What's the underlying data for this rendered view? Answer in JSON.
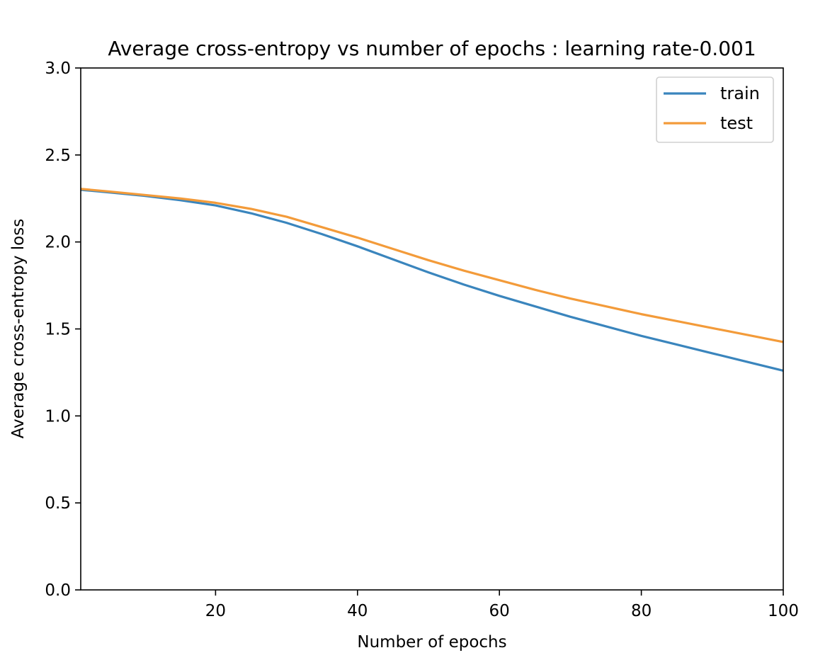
{
  "chart_data": {
    "type": "line",
    "title": "Average cross-entropy vs number of epochs : learning rate-0.001",
    "xlabel": "Number of epochs",
    "ylabel": "Average cross-entropy loss",
    "xlim": [
      1,
      100
    ],
    "ylim": [
      0,
      3.0
    ],
    "xticks": [
      20,
      40,
      60,
      80,
      100
    ],
    "xtick_labels": [
      "20",
      "40",
      "60",
      "80",
      "100"
    ],
    "yticks": [
      0,
      0.5,
      1.0,
      1.5,
      2.0,
      2.5,
      3.0
    ],
    "ytick_labels": [
      "0.0",
      "0.5",
      "1.0",
      "1.5",
      "2.0",
      "2.5",
      "3.0"
    ],
    "grid": false,
    "legend_position": "top-right",
    "x": [
      1,
      5,
      10,
      15,
      20,
      25,
      30,
      35,
      40,
      45,
      50,
      55,
      60,
      65,
      70,
      75,
      80,
      85,
      90,
      95,
      100
    ],
    "series": [
      {
        "name": "train",
        "color": "#3a85bd",
        "values": [
          2.3,
          2.285,
          2.265,
          2.24,
          2.21,
          2.165,
          2.11,
          2.045,
          1.975,
          1.9,
          1.825,
          1.755,
          1.69,
          1.63,
          1.57,
          1.515,
          1.46,
          1.41,
          1.36,
          1.31,
          1.26
        ]
      },
      {
        "name": "test",
        "color": "#f39b3a",
        "values": [
          2.305,
          2.29,
          2.27,
          2.25,
          2.225,
          2.19,
          2.145,
          2.085,
          2.025,
          1.96,
          1.895,
          1.835,
          1.78,
          1.725,
          1.675,
          1.63,
          1.585,
          1.545,
          1.505,
          1.465,
          1.425
        ]
      }
    ]
  }
}
